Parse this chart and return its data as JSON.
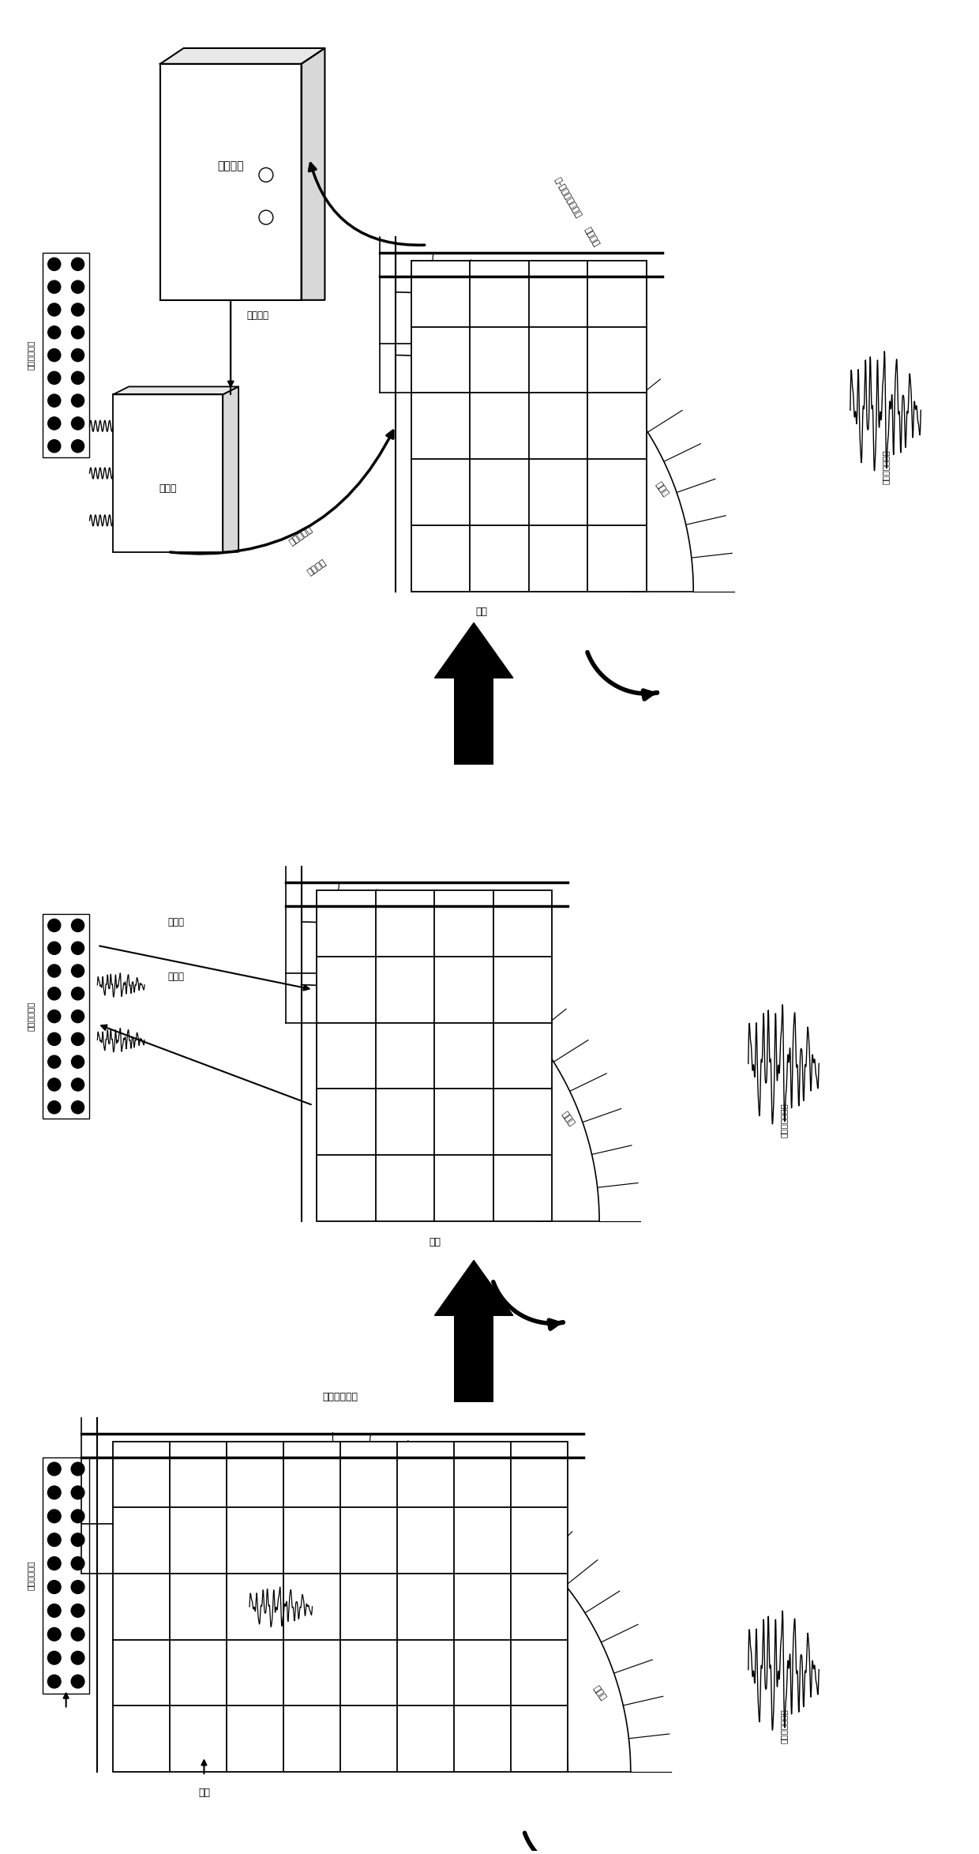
{
  "bg_color": "#ffffff",
  "line_color": "#000000",
  "fig_width": 12.4,
  "fig_height": 23.47,
  "labels": {
    "control_system": "控制系统",
    "feedback": "调整反馈",
    "shaking_table": "振动台",
    "energy_device1": "消能减震装置",
    "energy_device2": "消能减震装置",
    "energy_device3": "消能减震装置",
    "upper_output_line1": "上-结构分析了结构",
    "upper_output_line2": "结果输出",
    "test_sub_line1": "试验子结构",
    "test_sub_line2": "结果输出",
    "structure1": "结构",
    "structure2": "结构",
    "structure3": "结构",
    "layer_soil1": "层状土",
    "layer_soil2": "层状土",
    "layer_soil3": "层状土",
    "accel_input1": "加速度输入激励",
    "accel_input2": "加速度输入激励",
    "accel_input3": "加速度输入激励",
    "boundary_force1": "界面力",
    "boundary_force2": "界面力",
    "whole_system": "整体结构体系"
  }
}
